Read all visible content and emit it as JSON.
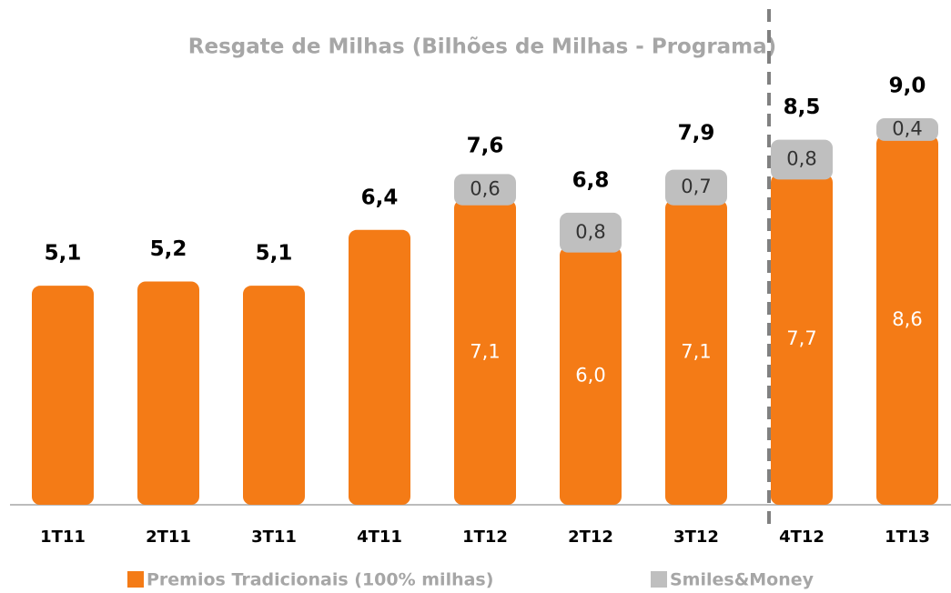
{
  "chart_data": {
    "type": "stacked-bar",
    "title": "Resgate de Milhas (Bilhões de Milhas - Programa)",
    "categories": [
      "1T11",
      "2T11",
      "3T11",
      "4T11",
      "1T12",
      "2T12",
      "3T12",
      "4T12",
      "1T13"
    ],
    "series": [
      {
        "name": "Premios Tradicionais (100% milhas)",
        "color": "#f47b16",
        "values": [
          5.1,
          5.2,
          5.1,
          6.4,
          7.1,
          6.0,
          7.1,
          7.7,
          8.6
        ],
        "value_labels": [
          null,
          null,
          null,
          null,
          "7,1",
          "6,0",
          "7,1",
          "7,7",
          "8,6"
        ]
      },
      {
        "name": "Smiles&Money",
        "color": "#bfbfbf",
        "values": [
          null,
          null,
          null,
          null,
          0.6,
          0.8,
          0.7,
          0.8,
          0.4
        ],
        "value_labels": [
          null,
          null,
          null,
          null,
          "0,6",
          "0,8",
          "0,7",
          "0,8",
          "0,4"
        ]
      }
    ],
    "totals": {
      "values": [
        5.1,
        5.2,
        5.1,
        6.4,
        7.6,
        6.8,
        7.9,
        8.5,
        9.0
      ],
      "value_labels": [
        "5,1",
        "5,2",
        "5,1",
        "6,4",
        "7,6",
        "6,8",
        "7,9",
        "8,5",
        "9,0"
      ]
    }
  }
}
